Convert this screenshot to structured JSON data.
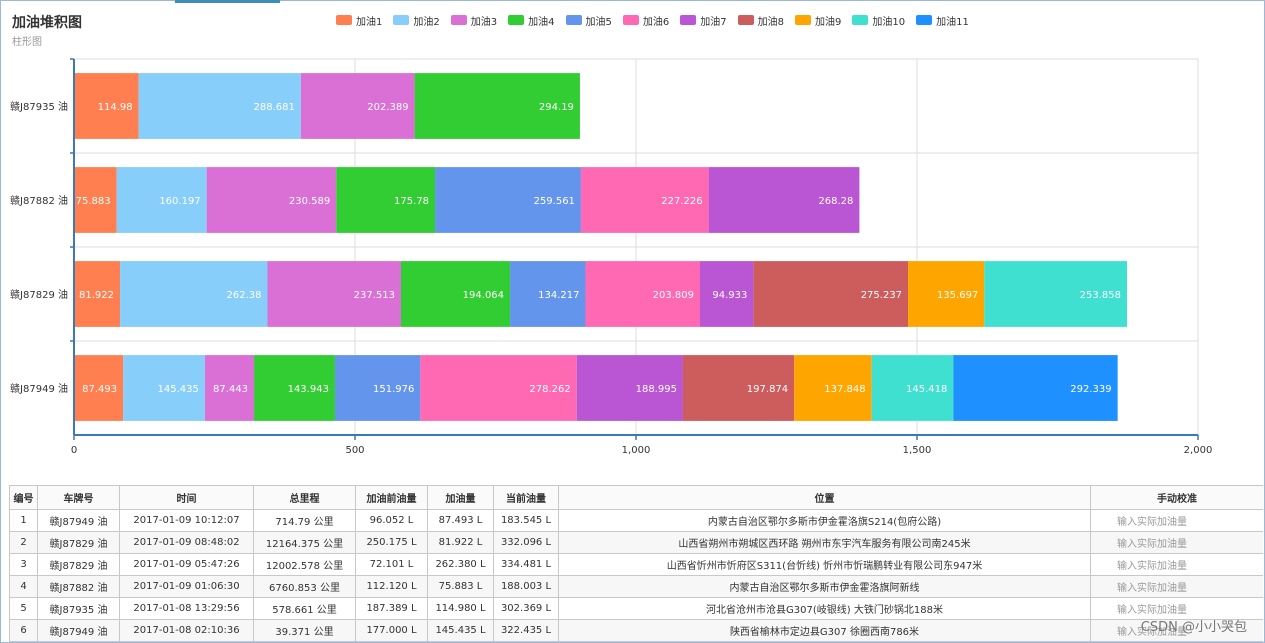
{
  "title": "加油堆积图",
  "subtitle": "柱形图",
  "legend": [
    {
      "name": "加油1",
      "color": "#ff7f50"
    },
    {
      "name": "加油2",
      "color": "#87cefa"
    },
    {
      "name": "加油3",
      "color": "#da70d6"
    },
    {
      "name": "加油4",
      "color": "#32cd32"
    },
    {
      "name": "加油5",
      "color": "#6495ed"
    },
    {
      "name": "加油6",
      "color": "#ff69b4"
    },
    {
      "name": "加油7",
      "color": "#ba55d3"
    },
    {
      "name": "加油8",
      "color": "#cd5c5c"
    },
    {
      "name": "加油9",
      "color": "#ffa500"
    },
    {
      "name": "加油10",
      "color": "#40e0d0"
    },
    {
      "name": "加油11",
      "color": "#1e90ff"
    }
  ],
  "chart_data": {
    "type": "bar",
    "orientation": "horizontal",
    "stacked": true,
    "categories": [
      "赣J87935 油",
      "赣J87882 油",
      "赣J87829 油",
      "赣J87949 油"
    ],
    "series": [
      {
        "name": "加油1",
        "values": [
          114.98,
          75.883,
          81.922,
          87.493
        ]
      },
      {
        "name": "加油2",
        "values": [
          288.681,
          160.197,
          262.38,
          145.435
        ]
      },
      {
        "name": "加油3",
        "values": [
          202.389,
          230.589,
          237.513,
          87.443
        ]
      },
      {
        "name": "加油4",
        "values": [
          294.19,
          175.78,
          194.064,
          143.943
        ]
      },
      {
        "name": "加油5",
        "values": [
          null,
          259.561,
          134.217,
          151.976
        ]
      },
      {
        "name": "加油6",
        "values": [
          null,
          227.226,
          203.809,
          278.262
        ]
      },
      {
        "name": "加油7",
        "values": [
          null,
          268.28,
          94.933,
          188.995
        ]
      },
      {
        "name": "加油8",
        "values": [
          null,
          null,
          275.237,
          197.874
        ]
      },
      {
        "name": "加油9",
        "values": [
          null,
          null,
          135.697,
          137.848
        ]
      },
      {
        "name": "加油10",
        "values": [
          null,
          null,
          253.858,
          145.418
        ]
      },
      {
        "name": "加油11",
        "values": [
          null,
          null,
          null,
          292.339
        ]
      }
    ],
    "data_labels": [
      [
        "114.98",
        "288.681",
        "202.389",
        "294.19",
        null,
        null,
        null,
        null,
        null,
        null,
        null
      ],
      [
        "75.883",
        "160.197",
        "230.589",
        "175.78",
        "259.561",
        "227.226",
        "268.28",
        null,
        null,
        null,
        null
      ],
      [
        "81.922",
        "262.38",
        "237.513",
        "194.064",
        "134.217",
        "203.809",
        "94.933",
        "275.237",
        "135.697",
        "253.858",
        null
      ],
      [
        "87.493",
        "145.435",
        "87.443",
        "143.943",
        "151.976",
        "278.262",
        "188.995",
        "197.874",
        "137.848",
        "145.418",
        "292.339"
      ]
    ],
    "xlim": [
      0,
      2000
    ],
    "xticks": [
      0,
      500,
      1000,
      1500,
      2000
    ],
    "xtick_labels": [
      "0",
      "500",
      "1,000",
      "1,500",
      "2,000"
    ],
    "grid": true,
    "legend_position": "top"
  },
  "table": {
    "headers": [
      "编号",
      "车牌号",
      "时间",
      "总里程",
      "加油前油量",
      "加油量",
      "当前油量",
      "位置",
      "手动校准"
    ],
    "input_placeholder": "输入实际加油量",
    "rows": [
      [
        "1",
        "赣J87949 油",
        "2017-01-09 10:12:07",
        "714.79 公里",
        "96.052 L",
        "87.493 L",
        "183.545 L",
        "内蒙古自治区鄂尔多斯市伊金霍洛旗S214(包府公路)"
      ],
      [
        "2",
        "赣J87829 油",
        "2017-01-09 08:48:02",
        "12164.375 公里",
        "250.175 L",
        "81.922 L",
        "332.096 L",
        "山西省朔州市朔城区西环路 朔州市东宇汽车服务有限公司南245米"
      ],
      [
        "3",
        "赣J87829 油",
        "2017-01-09 05:47:26",
        "12002.578 公里",
        "72.101 L",
        "262.380 L",
        "334.481 L",
        "山西省忻州市忻府区S311(台忻线) 忻州市忻瑞鹏转业有限公司东947米"
      ],
      [
        "4",
        "赣J87882 油",
        "2017-01-09 01:06:30",
        "6760.853 公里",
        "112.120 L",
        "75.883 L",
        "188.003 L",
        "内蒙古自治区鄂尔多斯市伊金霍洛旗阿新线"
      ],
      [
        "5",
        "赣J87935 油",
        "2017-01-08 13:29:56",
        "578.661 公里",
        "187.389 L",
        "114.980 L",
        "302.369 L",
        "河北省沧州市沧县G307(岐银线) 大铁门砂锅北188米"
      ],
      [
        "6",
        "赣J87949 油",
        "2017-01-08 02:10:36",
        "39.371 公里",
        "177.000 L",
        "145.435 L",
        "322.435 L",
        "陕西省榆林市定边县G307 徐圈西南786米"
      ]
    ]
  },
  "watermark": "CSDN @小小哭包"
}
